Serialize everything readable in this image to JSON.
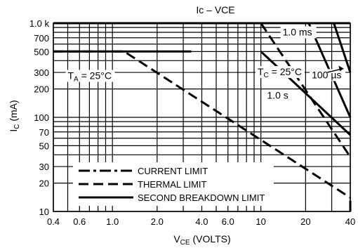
{
  "chart_data": {
    "type": "line",
    "title_main": "Ic",
    "title_sep": "–",
    "title_sub": "VCE",
    "ylabel_main": "I",
    "ylabel_sub": "C",
    "ylabel_unit": "(mA)",
    "xlabel_main": "V",
    "xlabel_sub": "CE",
    "xlabel_unit": "(VOLTS)",
    "x_scale": "log",
    "y_scale": "log",
    "xlim": [
      0.4,
      40
    ],
    "ylim": [
      10,
      1000
    ],
    "grid": true,
    "x_ticks": [
      {
        "v": 0.4,
        "label": "0.4"
      },
      {
        "v": 0.6,
        "label": "0.6"
      },
      {
        "v": 1.0,
        "label": "1.0"
      },
      {
        "v": 2.0,
        "label": "2.0"
      },
      {
        "v": 4.0,
        "label": "4.0"
      },
      {
        "v": 6.0,
        "label": "6.0"
      },
      {
        "v": 10,
        "label": "10"
      },
      {
        "v": 20,
        "label": "20"
      },
      {
        "v": 40,
        "label": "40"
      }
    ],
    "y_ticks": [
      {
        "v": 1000,
        "label": "1.0 k"
      },
      {
        "v": 700,
        "label": "700"
      },
      {
        "v": 500,
        "label": "500"
      },
      {
        "v": 300,
        "label": "300"
      },
      {
        "v": 200,
        "label": "200"
      },
      {
        "v": 100,
        "label": "100"
      },
      {
        "v": 70,
        "label": "70"
      },
      {
        "v": 50,
        "label": "50"
      },
      {
        "v": 30,
        "label": "30"
      },
      {
        "v": 20,
        "label": "20"
      },
      {
        "v": 10,
        "label": "10"
      }
    ],
    "x_grid": [
      0.4,
      0.5,
      0.6,
      0.7,
      0.8,
      0.9,
      1,
      2,
      3,
      4,
      5,
      6,
      7,
      8,
      9,
      10,
      20,
      30,
      40
    ],
    "y_grid": [
      10,
      20,
      30,
      40,
      50,
      60,
      70,
      80,
      90,
      100,
      200,
      300,
      400,
      500,
      600,
      700,
      800,
      900,
      1000
    ],
    "series": [
      {
        "name": "CURRENT LIMIT",
        "style": "dashdot",
        "points": [
          [
            0.4,
            1000
          ],
          [
            40,
            1000
          ]
        ]
      },
      {
        "name": "THERMAL LIMIT",
        "style": "dashed",
        "points": [
          [
            0.4,
            500
          ],
          [
            1.2,
            500
          ],
          [
            40,
            14
          ]
        ]
      },
      {
        "name": "THERMAL LIMIT",
        "style": "dashed",
        "points": [
          [
            3.2,
            1000
          ],
          [
            10,
            1000
          ],
          [
            40,
            38
          ]
        ]
      },
      {
        "name": "SECOND BREAKDOWN LIMIT",
        "style": "solid",
        "points": [
          [
            0.4,
            1000
          ],
          [
            40,
            1000
          ]
        ]
      },
      {
        "name": "SECOND BREAKDOWN LIMIT",
        "style": "solid",
        "points": [
          [
            0.4,
            500
          ],
          [
            3.4,
            500
          ]
        ]
      },
      {
        "name": "SECOND BREAKDOWN LIMIT",
        "style": "solid",
        "points": [
          [
            10,
            500
          ],
          [
            40,
            65
          ]
        ]
      },
      {
        "name": "SECOND BREAKDOWN LIMIT",
        "style": "solid",
        "points": [
          [
            21,
            1000
          ],
          [
            40,
            100
          ]
        ]
      },
      {
        "name": "SECOND BREAKDOWN LIMIT",
        "style": "solid",
        "points": [
          [
            31,
            1000
          ],
          [
            40,
            300
          ]
        ]
      },
      {
        "name": "SECOND BREAKDOWN LIMIT",
        "style": "solid",
        "points": [
          [
            40,
            13
          ],
          [
            40,
            10
          ]
        ]
      }
    ],
    "annotations": [
      {
        "id": "ta",
        "main": "T",
        "sub": "A",
        "rest": " = 25°C",
        "x": 0.5,
        "y": 255
      },
      {
        "id": "tc",
        "main": "T",
        "sub": "C",
        "rest": " = 25°C",
        "x": 9.5,
        "y": 280
      },
      {
        "id": "t1ms",
        "text": "1.0 ms",
        "x": 14,
        "y": 740
      },
      {
        "id": "t100us",
        "text": "100 µs",
        "x": 22,
        "y": 260
      },
      {
        "id": "t1s",
        "text": "1.0 s",
        "x": 11,
        "y": 158
      }
    ],
    "legend": {
      "position": "bottom-center",
      "items": [
        {
          "label": "CURRENT LIMIT",
          "style": "dashdot"
        },
        {
          "label": "THERMAL LIMIT",
          "style": "dashed"
        },
        {
          "label": "SECOND BREAKDOWN LIMIT",
          "style": "solid"
        }
      ]
    }
  }
}
